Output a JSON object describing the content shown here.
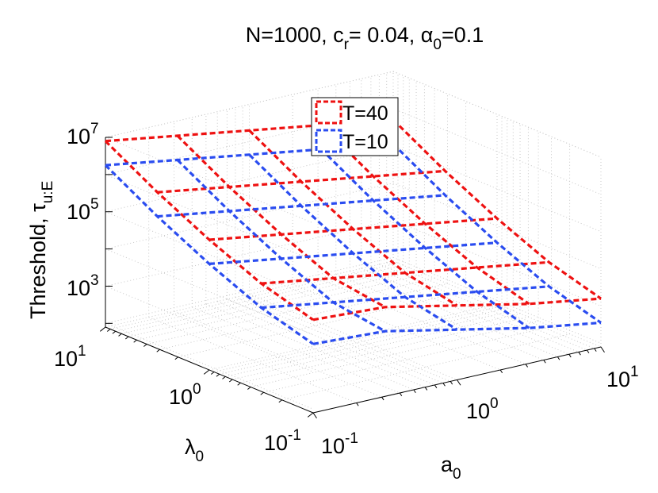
{
  "chart_data": {
    "type": "line",
    "projection": "3d",
    "title_main": "N=1000, c",
    "title_sub_r": "r",
    "title_mid": "= 0.04, ",
    "title_alpha": "α",
    "title_sub_0": "0",
    "title_tail": "=0.1",
    "x_axis_symbol": "a",
    "x_axis_sub": "0",
    "y_axis_symbol": "λ",
    "y_axis_sub": "0",
    "z_axis_main": "Threshold, τ",
    "z_axis_sub": "u:E",
    "x_ticks": [
      {
        "base": "10",
        "exp": "-1"
      },
      {
        "base": "10",
        "exp": "0"
      },
      {
        "base": "10",
        "exp": "1"
      }
    ],
    "y_ticks": [
      {
        "base": "10",
        "exp": "-1"
      },
      {
        "base": "10",
        "exp": "0"
      },
      {
        "base": "10",
        "exp": "1"
      }
    ],
    "z_ticks": [
      {
        "base": "10",
        "exp": "3"
      },
      {
        "base": "10",
        "exp": "5"
      },
      {
        "base": "10",
        "exp": "7"
      }
    ],
    "x_log_range": [
      -1,
      1
    ],
    "y_log_range": [
      -1,
      1
    ],
    "z_log_range": [
      1.9,
      7
    ],
    "legend": [
      {
        "label": "T=40",
        "color": "#ee1111"
      },
      {
        "label": "T=10",
        "color": "#2a4cf0"
      }
    ],
    "a0_grid_log": [
      -1,
      -0.5,
      0,
      0.5,
      1
    ],
    "lambda0_grid_log": [
      1,
      0.5,
      0,
      -0.5,
      -1
    ],
    "series": [
      {
        "name": "T=40",
        "color": "#ee1111",
        "log10_tau": [
          [
            6.9,
            6.6,
            6.3,
            6.0,
            5.7
          ],
          [
            6.1,
            5.8,
            5.5,
            5.2,
            4.9
          ],
          [
            5.4,
            5.1,
            4.8,
            4.5,
            4.2
          ],
          [
            4.8,
            4.5,
            4.2,
            3.9,
            3.6
          ],
          [
            4.4,
            4.3,
            3.9,
            3.5,
            3.2
          ]
        ]
      },
      {
        "name": "T=10",
        "color": "#2a4cf0",
        "log10_tau": [
          [
            6.25,
            5.95,
            5.65,
            5.35,
            5.05
          ],
          [
            5.45,
            5.15,
            4.85,
            4.55,
            4.25
          ],
          [
            4.75,
            4.45,
            4.15,
            3.85,
            3.55
          ],
          [
            4.15,
            3.85,
            3.55,
            3.25,
            2.95
          ],
          [
            3.75,
            3.65,
            3.25,
            2.85,
            2.55
          ]
        ]
      }
    ]
  }
}
